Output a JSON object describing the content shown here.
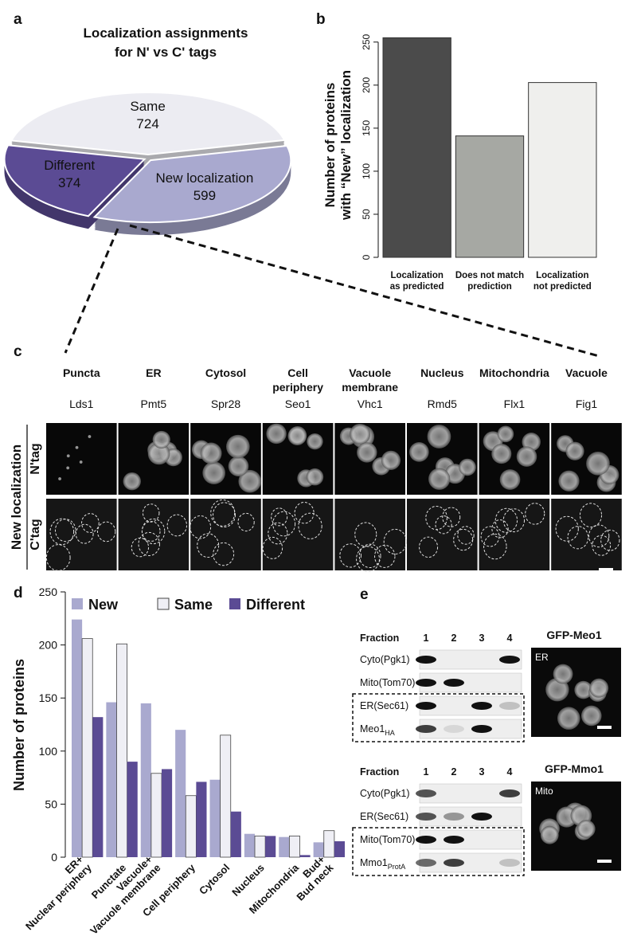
{
  "panel_labels": [
    "a",
    "b",
    "c",
    "d",
    "e"
  ],
  "chart_data": [
    {
      "type": "pie",
      "title": [
        "Localization assignments",
        "for N' vs C' tags"
      ],
      "categories": [
        "Same",
        "New localization",
        "Different"
      ],
      "values": [
        724,
        599,
        374
      ],
      "colors": [
        "#ececf2",
        "#a9a9cf",
        "#5b4b94"
      ]
    },
    {
      "type": "bar",
      "ylabel": [
        "Number of proteins",
        "with “New” localization"
      ],
      "categories": [
        [
          "Localization",
          "as predicted"
        ],
        [
          "Does not match",
          "prediction"
        ],
        [
          "Localization",
          "not predicted"
        ]
      ],
      "values": [
        255,
        141,
        203
      ],
      "colors": [
        "#4b4b4b",
        "#a6a8a3",
        "#efefed"
      ],
      "ylim": [
        0,
        260
      ],
      "yticks": [
        0,
        50,
        100,
        150,
        200,
        250
      ]
    },
    {
      "type": "grouped_bar",
      "ylabel": "Number of proteins",
      "categories": [
        [
          "ER+",
          "Nuclear periphery"
        ],
        [
          "Punctate"
        ],
        [
          "Vacuole+",
          "Vacuole membrane"
        ],
        [
          "Cell periphery"
        ],
        [
          "Cytosol"
        ],
        [
          "Nucleus"
        ],
        [
          "Mitochondria"
        ],
        [
          "Bud+",
          "Bud neck"
        ]
      ],
      "series": [
        {
          "name": "New",
          "color": "#a9a9cf",
          "values": [
            224,
            146,
            145,
            120,
            73,
            22,
            19,
            14
          ]
        },
        {
          "name": "Same",
          "color": "#efeff5",
          "values": [
            206,
            201,
            79,
            58,
            115,
            20,
            20,
            25
          ]
        },
        {
          "name": "Different",
          "color": "#5b4b94",
          "values": [
            132,
            90,
            83,
            71,
            43,
            20,
            2,
            15
          ]
        }
      ],
      "ylim": [
        0,
        250
      ],
      "yticks": [
        0,
        50,
        100,
        150,
        200,
        250
      ]
    }
  ],
  "panel_c": {
    "headers": [
      [
        "Puncta"
      ],
      [
        "ER"
      ],
      [
        "Cytosol"
      ],
      [
        "Cell",
        "periphery"
      ],
      [
        "Vacuole",
        "membrane"
      ],
      [
        "Nucleus"
      ],
      [
        "Mitochondria"
      ],
      [
        "Vacuole"
      ]
    ],
    "genes": [
      "Lds1",
      "Pmt5",
      "Spr28",
      "Seo1",
      "Vhc1",
      "Rmd5",
      "Flx1",
      "Fig1"
    ],
    "group_label": "New localization",
    "row_labels": [
      "N'tag",
      "C'tag"
    ]
  },
  "panel_e": {
    "blots": [
      {
        "fraction_label": "Fraction",
        "lanes": [
          "1",
          "2",
          "3",
          "4"
        ],
        "rows": [
          {
            "text": "Cyto(Pgk1)"
          },
          {
            "text": "Mito(Tom70)"
          },
          {
            "text": "ER(Sec61)"
          },
          {
            "text": "Meo1",
            "sub": "HA"
          }
        ],
        "image_title": "GFP-Meo1",
        "image_label": "ER"
      },
      {
        "fraction_label": "Fraction",
        "lanes": [
          "1",
          "2",
          "3",
          "4"
        ],
        "rows": [
          {
            "text": "Cyto(Pgk1)"
          },
          {
            "text": "ER(Sec61)"
          },
          {
            "text": "Mito(Tom70)"
          },
          {
            "text": "Mmo1",
            "sub": "ProtA"
          }
        ],
        "image_title": "GFP-Mmo1",
        "image_label": "Mito"
      }
    ]
  }
}
